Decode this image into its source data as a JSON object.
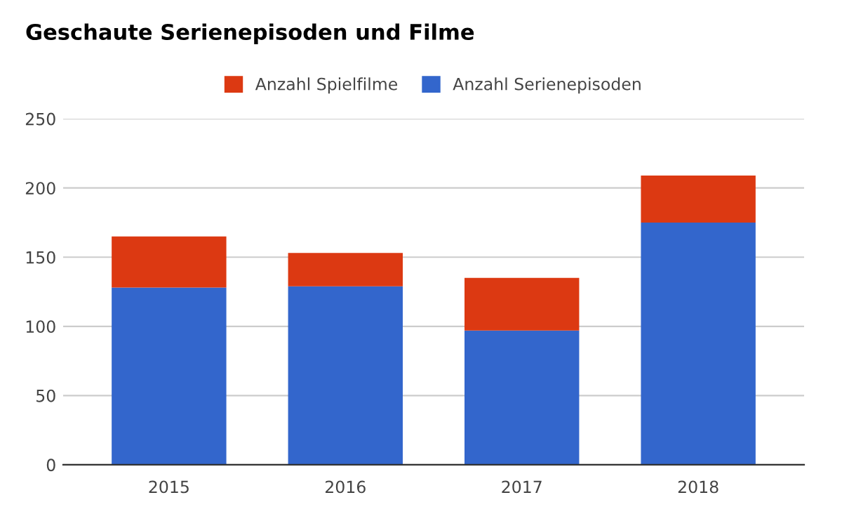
{
  "chart_data": {
    "type": "bar",
    "title": "Geschaute Serienepisoden und Filme",
    "categories": [
      "2015",
      "2016",
      "2017",
      "2018"
    ],
    "stacked": true,
    "series": [
      {
        "name": "Anzahl Serienepisoden",
        "color": "#3366cc",
        "values": [
          128,
          129,
          97,
          175
        ]
      },
      {
        "name": "Anzahl Spielfilme",
        "color": "#dc3912",
        "values": [
          37,
          24,
          38,
          34
        ]
      }
    ],
    "ylim": [
      0,
      250
    ],
    "yticks": [
      0,
      50,
      100,
      150,
      200,
      250
    ],
    "grid": "y",
    "legend": "top"
  }
}
